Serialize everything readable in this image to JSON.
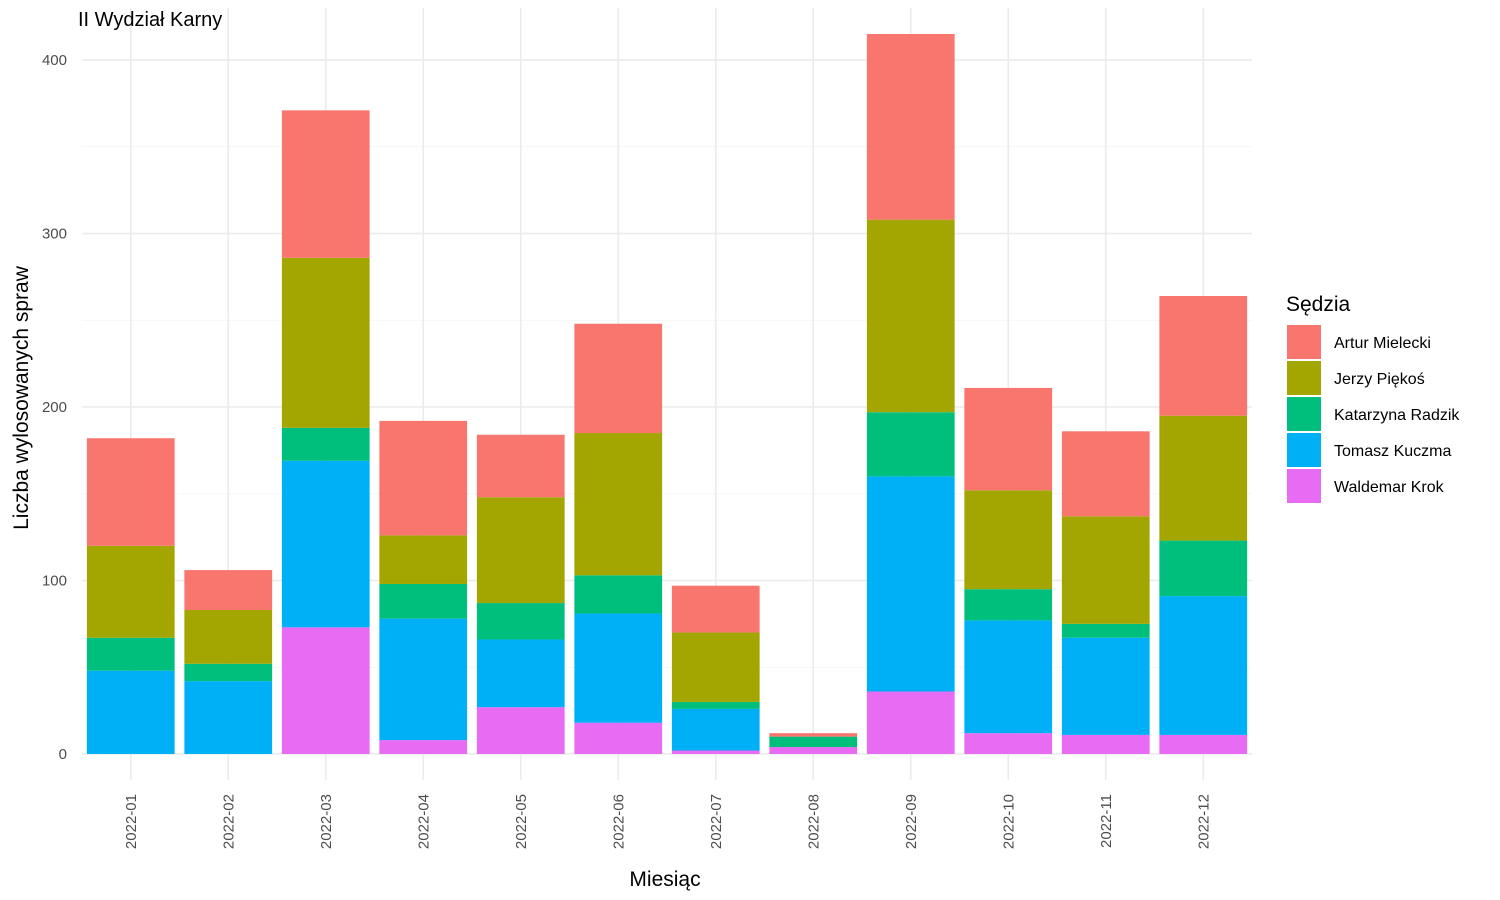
{
  "chart_data": {
    "type": "bar",
    "stacked": true,
    "title": "II Wydział Karny",
    "xlabel": "Miesiąc",
    "ylabel": "Liczba wylosowanych spraw",
    "ylim": [
      -15,
      430
    ],
    "yticks": [
      0,
      100,
      200,
      300,
      400
    ],
    "grid": true,
    "legend": {
      "title": "Sędzia",
      "position": "right"
    },
    "categories": [
      "2022-01",
      "2022-02",
      "2022-03",
      "2022-04",
      "2022-05",
      "2022-06",
      "2022-07",
      "2022-08",
      "2022-09",
      "2022-10",
      "2022-11",
      "2022-12"
    ],
    "series": [
      {
        "name": "Waldemar Krok",
        "color": "#E76BF3",
        "values": [
          0,
          0,
          73,
          8,
          27,
          18,
          2,
          4,
          36,
          12,
          11,
          11
        ]
      },
      {
        "name": "Tomasz Kuczma",
        "color": "#00B0F6",
        "values": [
          48,
          42,
          96,
          70,
          39,
          63,
          24,
          0,
          124,
          65,
          56,
          80
        ]
      },
      {
        "name": "Katarzyna Radzik",
        "color": "#00BF7D",
        "values": [
          19,
          10,
          19,
          20,
          21,
          22,
          4,
          6,
          37,
          18,
          8,
          32
        ]
      },
      {
        "name": "Jerzy Piękoś",
        "color": "#A3A500",
        "values": [
          53,
          31,
          98,
          28,
          61,
          82,
          40,
          0,
          111,
          57,
          62,
          72
        ]
      },
      {
        "name": "Artur Mielecki",
        "color": "#F8766D",
        "values": [
          62,
          23,
          85,
          66,
          36,
          63,
          27,
          2,
          107,
          59,
          49,
          69
        ]
      }
    ],
    "legend_order": [
      "Artur Mielecki",
      "Jerzy Piękoś",
      "Katarzyna Radzik",
      "Tomasz Kuczma",
      "Waldemar Krok"
    ]
  }
}
